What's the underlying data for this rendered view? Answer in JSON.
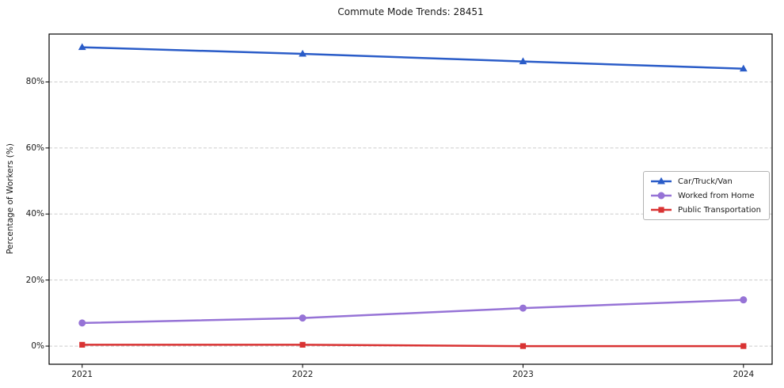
{
  "chart_data": {
    "type": "line",
    "title": "Commute Mode Trends: 28451",
    "xlabel": "",
    "ylabel": "Percentage of Workers (%)",
    "x": [
      2021,
      2022,
      2023,
      2024
    ],
    "x_tick_labels": [
      "2021",
      "2022",
      "2023",
      "2024"
    ],
    "y_ticks": [
      0,
      20,
      40,
      60,
      80
    ],
    "y_tick_labels": [
      "0%",
      "20%",
      "40%",
      "60%",
      "80%"
    ],
    "xlim": [
      2020.85,
      2024.13
    ],
    "ylim": [
      -5.5,
      94.5
    ],
    "grid": "horizontal-dashed",
    "grid_color": "#cccccc",
    "axis_color": "#000000",
    "legend_position": "center-right",
    "series": [
      {
        "name": "Car/Truck/Van",
        "color": "#2a5cc8",
        "marker": "triangle",
        "values": [
          90.5,
          88.5,
          86.2,
          84.0
        ]
      },
      {
        "name": "Worked from Home",
        "color": "#9673d6",
        "marker": "circle",
        "values": [
          7.0,
          8.5,
          11.5,
          14.0
        ]
      },
      {
        "name": "Public Transportation",
        "color": "#d93333",
        "marker": "square",
        "values": [
          0.4,
          0.4,
          0.0,
          0.0
        ]
      }
    ]
  }
}
